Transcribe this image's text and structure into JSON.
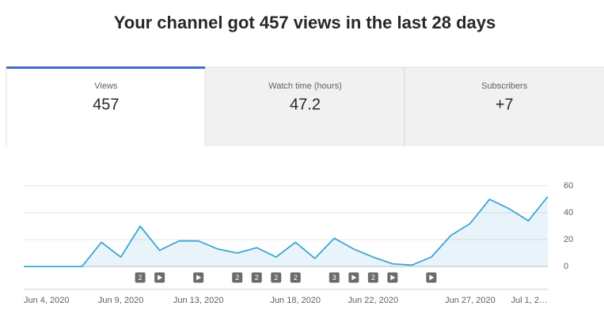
{
  "header": {
    "title": "Your channel got 457 views in the last 28 days"
  },
  "tabs": [
    {
      "label": "Views",
      "value": "457"
    },
    {
      "label": "Watch time (hours)",
      "value": "47.2"
    },
    {
      "label": "Subscribers",
      "value": "+7"
    }
  ],
  "chart_data": {
    "type": "area",
    "categories": [
      "Jun 4, 2020",
      null,
      null,
      null,
      null,
      "Jun 9, 2020",
      null,
      null,
      null,
      "Jun 13, 2020",
      null,
      null,
      null,
      null,
      "Jun 18, 2020",
      null,
      null,
      null,
      "Jun 22, 2020",
      null,
      null,
      null,
      null,
      "Jun 27, 2020",
      null,
      null,
      null,
      "Jul 1, 2…"
    ],
    "values": [
      0,
      0,
      0,
      0,
      18,
      7,
      30,
      12,
      19,
      19,
      13,
      10,
      14,
      7,
      18,
      6,
      21,
      13,
      7,
      2,
      1,
      7,
      23,
      32,
      50,
      43,
      34,
      52
    ],
    "color": "#3ea6d3",
    "ylim": [
      0,
      60
    ],
    "yticks": [
      0,
      20,
      40,
      60
    ],
    "grid": true,
    "event_counts": [
      null,
      null,
      null,
      null,
      null,
      null,
      2,
      null,
      null,
      null,
      null,
      2,
      2,
      2,
      2,
      null,
      3,
      null,
      2,
      null,
      null,
      null,
      null,
      null,
      null,
      null,
      null,
      null
    ],
    "new_video": [
      false,
      false,
      false,
      false,
      false,
      false,
      false,
      true,
      false,
      true,
      false,
      false,
      false,
      false,
      false,
      false,
      false,
      true,
      false,
      true,
      false,
      true,
      false,
      false,
      false,
      false,
      false,
      false
    ]
  }
}
